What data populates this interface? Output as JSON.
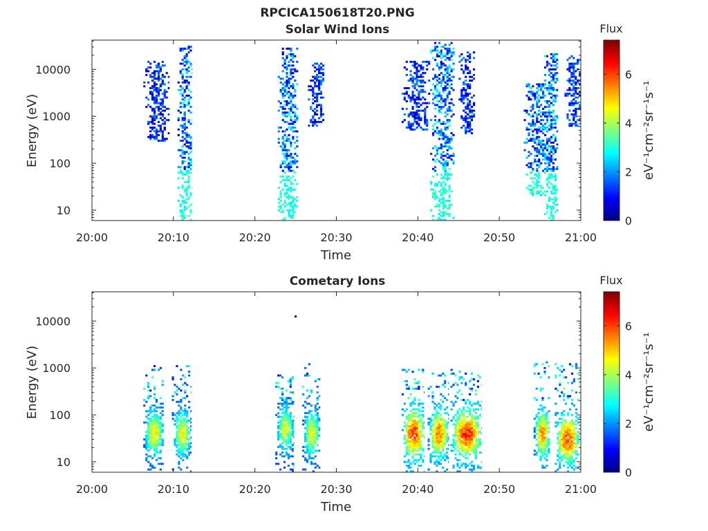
{
  "figure": {
    "filename_title": "RPCICA150618T20.PNG"
  },
  "colorbar": {
    "title": "Flux",
    "units": "eV⁻¹cm⁻²sr⁻¹s⁻¹",
    "range": [
      0,
      7.4
    ],
    "ticks": [
      0,
      2,
      4,
      6
    ],
    "colormap": "jet",
    "colors": [
      "#00007f",
      "#0000ff",
      "#007fff",
      "#00ffff",
      "#7fff7f",
      "#ffff00",
      "#ff7f00",
      "#ff0000",
      "#7f0000"
    ]
  },
  "chart_data": [
    {
      "type": "heatmap",
      "title": "Solar Wind Ions",
      "xlabel": "Time",
      "ylabel": "Energy (eV)",
      "x_ticks": [
        "20:00",
        "20:10",
        "20:20",
        "20:30",
        "20:40",
        "20:50",
        "21:00"
      ],
      "xlim_minutes": [
        0,
        60
      ],
      "y_scale": "log",
      "y_ticks": [
        10,
        100,
        1000,
        10000
      ],
      "ylim": [
        6,
        42000
      ],
      "bursts": [
        {
          "minutes": [
            6.3,
            9.5
          ],
          "energy_eV": [
            300,
            15000
          ],
          "peak_flux": 2.0
        },
        {
          "minutes": [
            10.5,
            12.3
          ],
          "energy_eV": [
            6,
            33000
          ],
          "peak_flux": 3.0
        },
        {
          "minutes": [
            22.8,
            25.3
          ],
          "energy_eV": [
            6,
            30000
          ],
          "peak_flux": 3.0
        },
        {
          "minutes": [
            26.5,
            28.5
          ],
          "energy_eV": [
            600,
            14000
          ],
          "peak_flux": 2.0
        },
        {
          "minutes": [
            38.0,
            41.5
          ],
          "energy_eV": [
            500,
            15000
          ],
          "peak_flux": 2.0
        },
        {
          "minutes": [
            41.5,
            44.5
          ],
          "energy_eV": [
            6,
            38000
          ],
          "peak_flux": 3.2
        },
        {
          "minutes": [
            45.0,
            47.0
          ],
          "energy_eV": [
            400,
            25000
          ],
          "peak_flux": 2.0
        },
        {
          "minutes": [
            53.0,
            56.0
          ],
          "energy_eV": [
            20,
            5000
          ],
          "peak_flux": 2.8
        },
        {
          "minutes": [
            55.5,
            57.2
          ],
          "energy_eV": [
            6,
            25000
          ],
          "peak_flux": 3.0
        },
        {
          "minutes": [
            58.0,
            60.0
          ],
          "energy_eV": [
            600,
            20000
          ],
          "peak_flux": 2.0
        }
      ]
    },
    {
      "type": "heatmap",
      "title": "Cometary Ions",
      "xlabel": "Time",
      "ylabel": "Energy (eV)",
      "x_ticks": [
        "20:00",
        "20:10",
        "20:20",
        "20:30",
        "20:40",
        "20:50",
        "21:00"
      ],
      "xlim_minutes": [
        0,
        60
      ],
      "y_scale": "log",
      "y_ticks": [
        10,
        100,
        1000,
        10000
      ],
      "ylim": [
        6,
        42000
      ],
      "bursts": [
        {
          "minutes": [
            6.3,
            8.8
          ],
          "energy_eV": [
            6,
            1200
          ],
          "peak_flux": 5.2,
          "center_eV": 40
        },
        {
          "minutes": [
            9.8,
            12.2
          ],
          "energy_eV": [
            6,
            1200
          ],
          "peak_flux": 5.0,
          "center_eV": 40
        },
        {
          "minutes": [
            22.5,
            24.8
          ],
          "energy_eV": [
            6,
            700
          ],
          "peak_flux": 4.8,
          "center_eV": 50
        },
        {
          "minutes": [
            25.8,
            28.0
          ],
          "energy_eV": [
            6,
            1300
          ],
          "peak_flux": 5.0,
          "center_eV": 40
        },
        {
          "minutes": [
            38.0,
            40.8
          ],
          "energy_eV": [
            6,
            1000
          ],
          "peak_flux": 6.8,
          "center_eV": 40
        },
        {
          "minutes": [
            41.2,
            43.8
          ],
          "energy_eV": [
            6,
            800
          ],
          "peak_flux": 6.2,
          "center_eV": 40
        },
        {
          "minutes": [
            44.0,
            47.8
          ],
          "energy_eV": [
            6,
            1000
          ],
          "peak_flux": 6.8,
          "center_eV": 40
        },
        {
          "minutes": [
            54.2,
            56.2
          ],
          "energy_eV": [
            6,
            1400
          ],
          "peak_flux": 6.0,
          "center_eV": 40
        },
        {
          "minutes": [
            56.8,
            59.8
          ],
          "energy_eV": [
            6,
            1300
          ],
          "peak_flux": 6.6,
          "center_eV": 30
        }
      ],
      "isolated_points": [
        {
          "minute": 25.0,
          "energy_eV": 12500,
          "flux": 0.3
        }
      ]
    }
  ]
}
